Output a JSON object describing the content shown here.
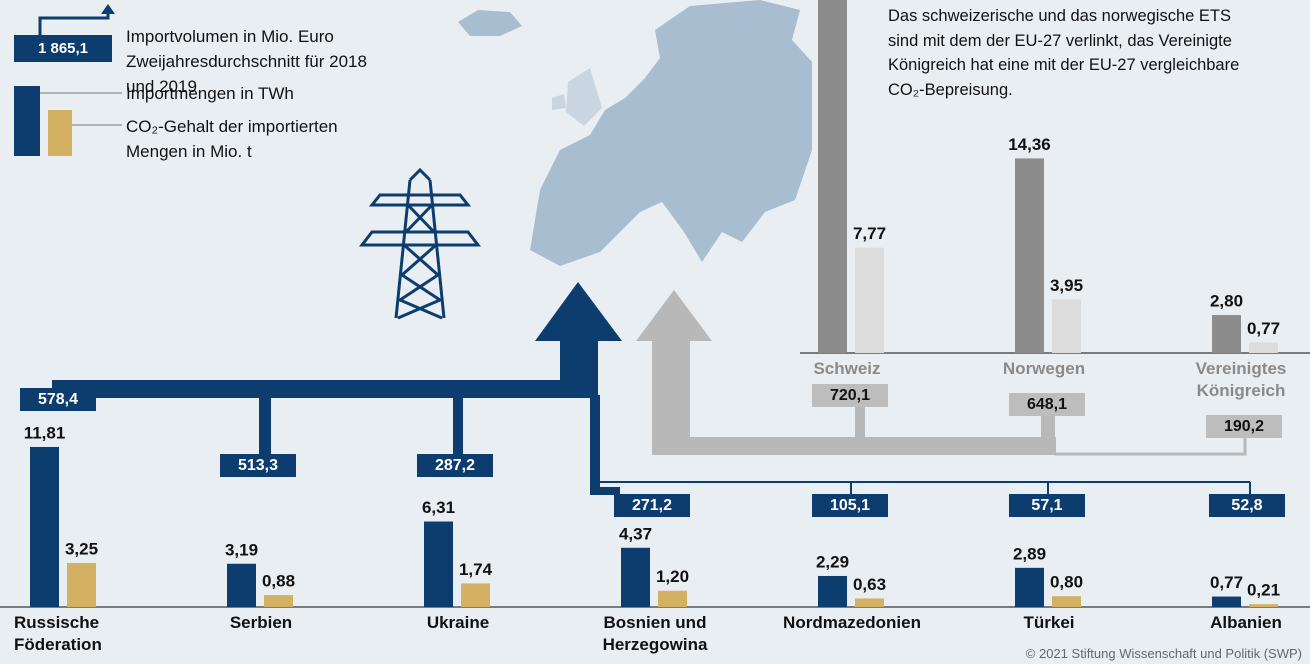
{
  "chart_data": [
    {
      "type": "bar",
      "categories": [
        "Russische Föderation",
        "Serbien",
        "Ukraine",
        "Bosnien und Herzegowina",
        "Nordmazedonien",
        "Türkei",
        "Albanien"
      ],
      "series": [
        {
          "name": "Importmengen in TWh",
          "color": "#0d3c6e",
          "values": [
            11.81,
            3.19,
            6.31,
            4.37,
            2.29,
            2.89,
            0.77
          ],
          "value_labels": [
            "11,81",
            "3,19",
            "6,31",
            "4,37",
            "2,29",
            "2,89",
            "0,77"
          ]
        },
        {
          "name": "CO₂-Gehalt der importierten Mengen in Mio. t",
          "color": "#d4b062",
          "values": [
            3.25,
            0.88,
            1.74,
            1.2,
            0.63,
            0.8,
            0.21
          ],
          "value_labels": [
            "3,25",
            "0,88",
            "1,74",
            "1,20",
            "0,63",
            "0,80",
            "0,21"
          ]
        }
      ],
      "import_volume": {
        "name": "Importvolumen in Mio. Euro",
        "note": "Zweijahresdurchschnitt für 2018 und 2019",
        "example": "1 865,1",
        "values": [
          578.4,
          513.3,
          287.2,
          271.2,
          105.1,
          57.1,
          52.8
        ],
        "value_labels": [
          "578,4",
          "513,3",
          "287,2",
          "271,2",
          "105,1",
          "57,1",
          "52,8"
        ]
      }
    },
    {
      "type": "bar",
      "categories": [
        "Schweiz",
        "Norwegen",
        "Vereinigtes Königreich"
      ],
      "series": [
        {
          "color": "#8c8c8c",
          "values": [
            null,
            14.36,
            2.8
          ],
          "value_labels": [
            null,
            "14,36",
            "2,80"
          ]
        },
        {
          "color": "#dcdcdc",
          "values": [
            7.77,
            3.95,
            0.77
          ],
          "value_labels": [
            "7,77",
            "3,95",
            "0,77"
          ]
        }
      ],
      "import_volume": {
        "values": [
          720.1,
          648.1,
          190.2
        ],
        "value_labels": [
          "720,1",
          "648,1",
          "190,2"
        ]
      }
    }
  ],
  "note": "Das schweizerische und das norwegische ETS sind mit dem der EU-27 verlinkt, das Vereinigte Königreich hat eine mit der EU-27 vergleichbare CO₂-Bepreisung.",
  "source": "© 2021 Stiftung Wissenschaft und Politik (SWP)"
}
